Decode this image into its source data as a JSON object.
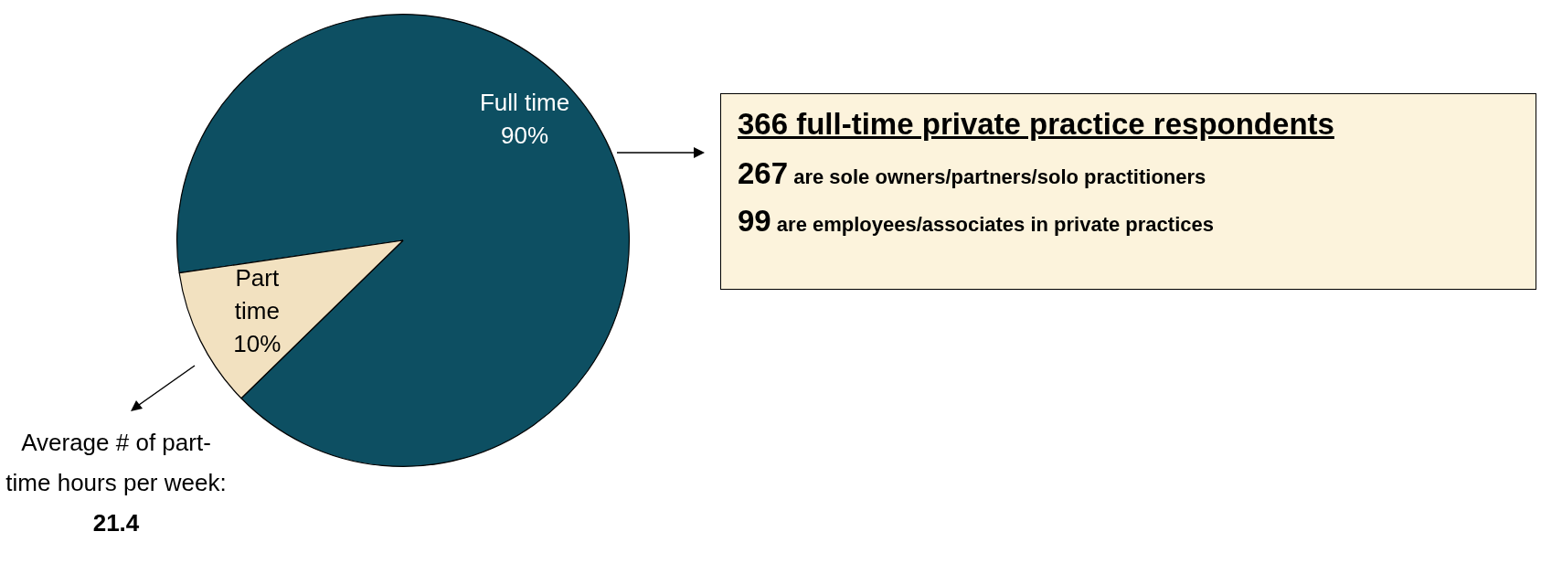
{
  "chart_data": {
    "type": "pie",
    "categories": [
      "Full time",
      "Part time"
    ],
    "values": [
      90,
      10
    ],
    "colors": [
      "#0d4f62",
      "#f2e1c0"
    ],
    "value_labels": [
      "90%",
      "10%"
    ],
    "legend": false,
    "annotations": [
      "366 full-time private practice respondents",
      "267 are sole owners/partners/solo practitioners",
      "99 are employees/associates in private practices",
      "Average # of part-time hours per week:",
      "21.4"
    ]
  }
}
